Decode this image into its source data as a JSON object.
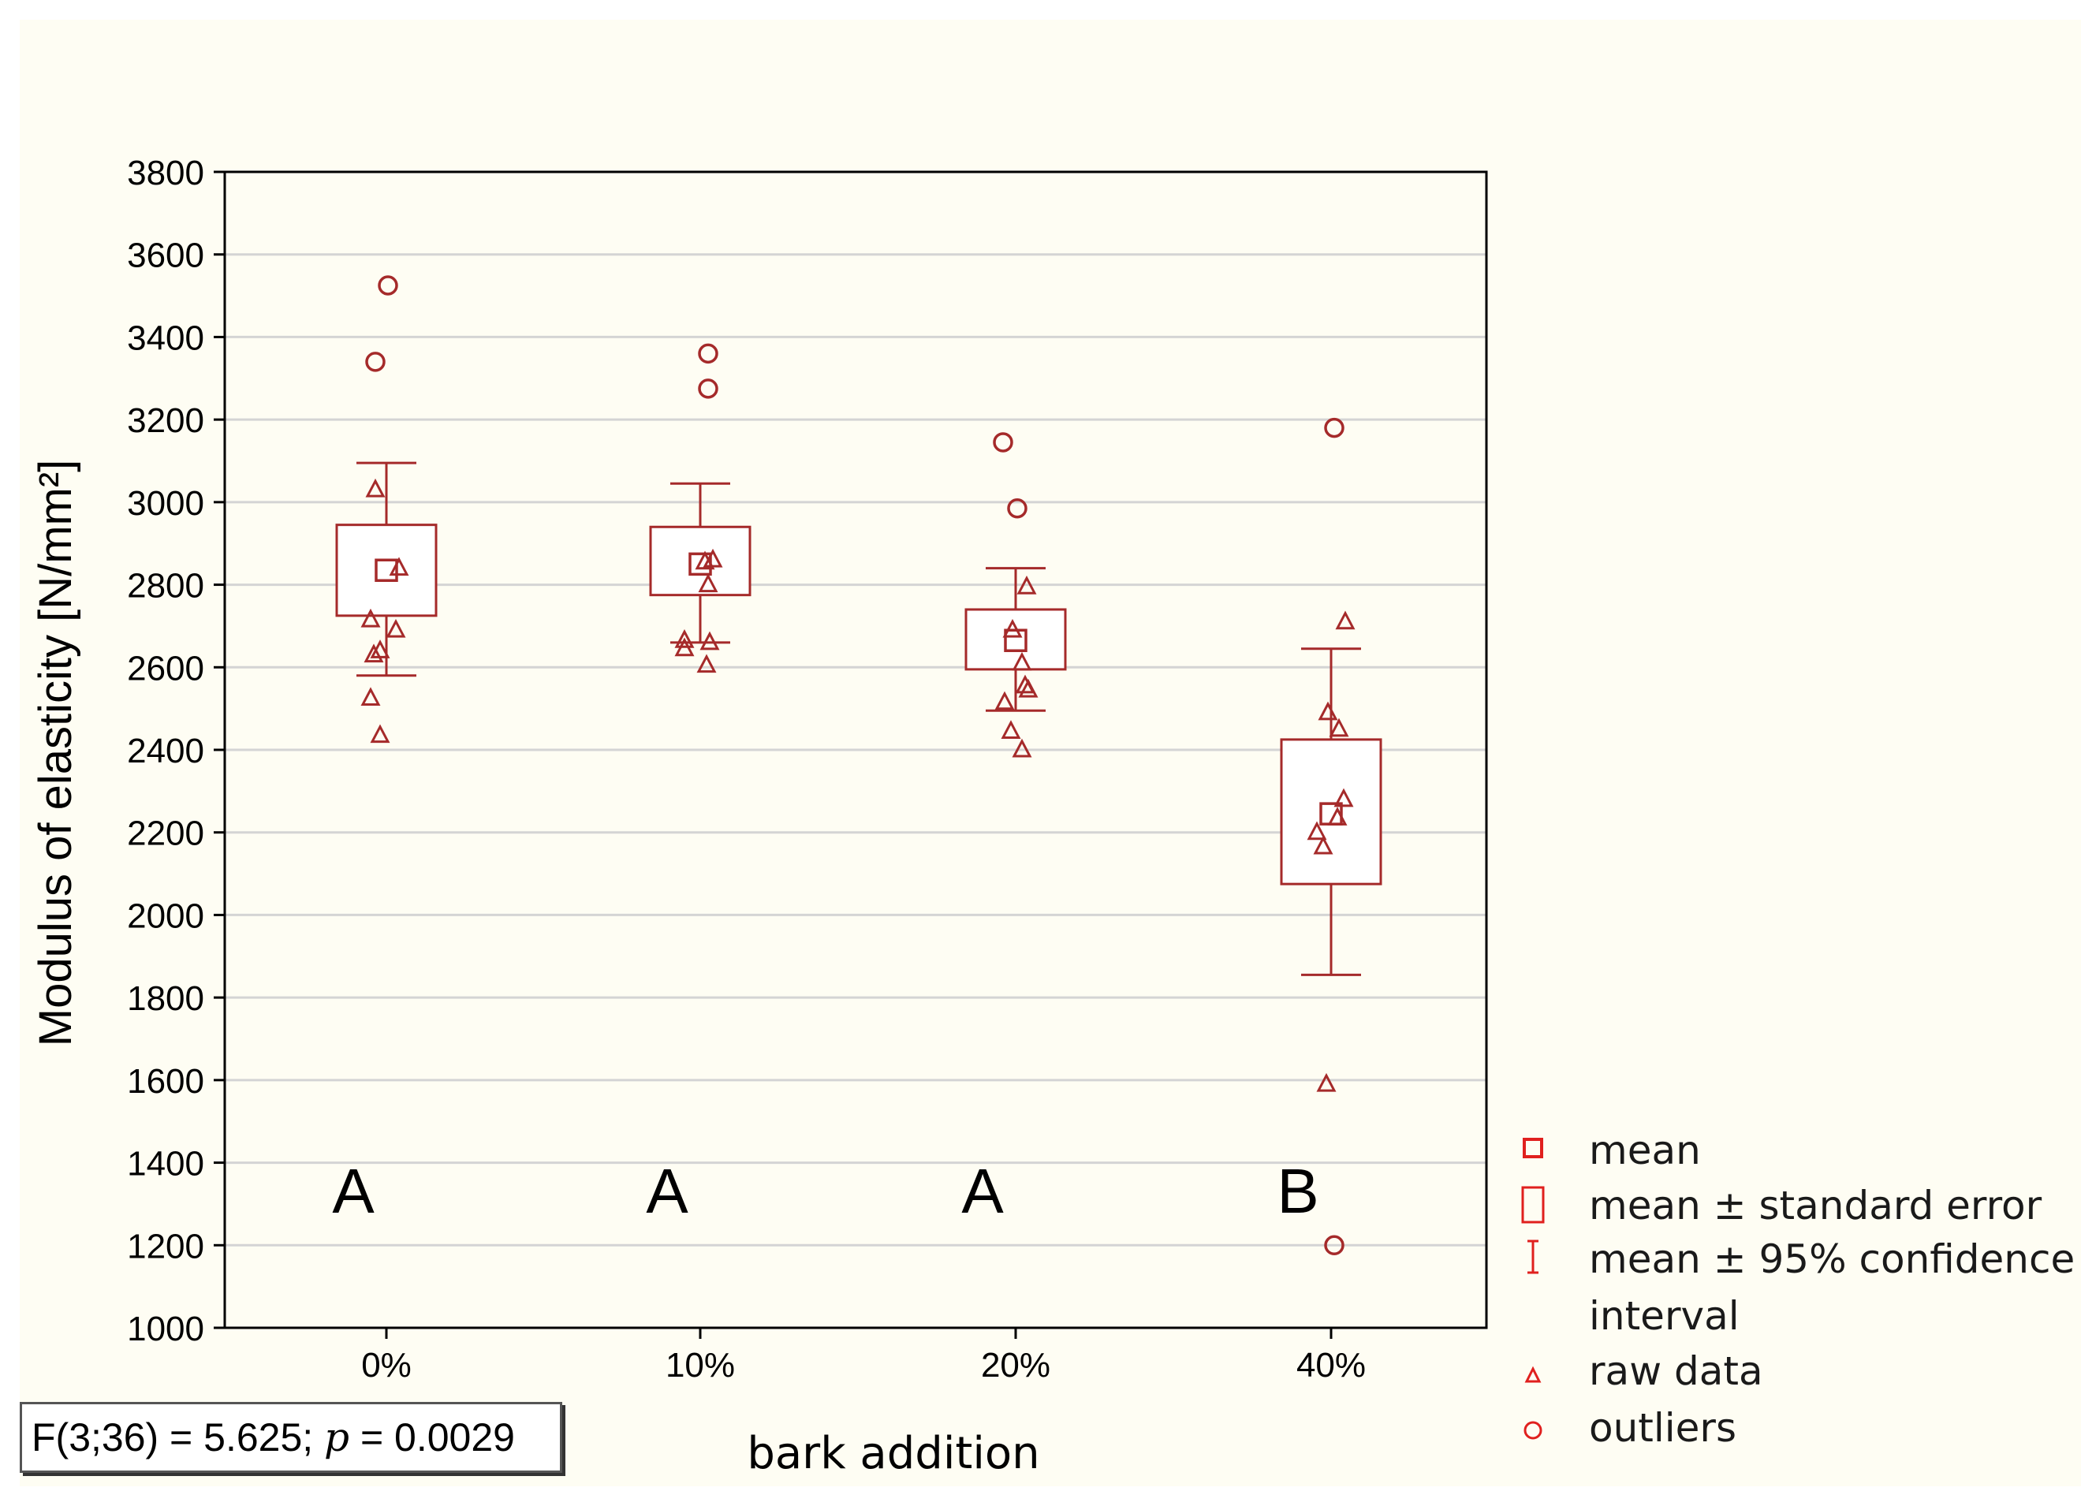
{
  "chart_data": {
    "type": "box",
    "xlabel": "bark addition",
    "ylabel": "Modulus of elasticity [N/mm²]",
    "ylim": [
      1000,
      3800
    ],
    "yticks": [
      1000,
      1200,
      1400,
      1600,
      1800,
      2000,
      2200,
      2400,
      2600,
      2800,
      3000,
      3200,
      3400,
      3600,
      3800
    ],
    "grid": "horizontal",
    "categories": [
      "0%",
      "10%",
      "20%",
      "40%"
    ],
    "groups": [
      {
        "category": "0%",
        "letter": "A",
        "mean": 2835,
        "se": [
          2725,
          2945
        ],
        "ci": [
          2580,
          3095
        ],
        "raw": [
          [
            -0.07,
            3030
          ],
          [
            0.08,
            2840
          ],
          [
            0.06,
            2690
          ],
          [
            -0.1,
            2715
          ],
          [
            -0.08,
            2630
          ],
          [
            -0.04,
            2640
          ],
          [
            -0.1,
            2525
          ],
          [
            -0.04,
            2435
          ]
        ],
        "outliers": [
          [
            0.01,
            3525
          ],
          [
            -0.07,
            3340
          ]
        ]
      },
      {
        "category": "10%",
        "letter": "A",
        "mean": 2850,
        "se": [
          2775,
          2940
        ],
        "ci": [
          2660,
          3045
        ],
        "raw": [
          [
            0.08,
            2860
          ],
          [
            0.03,
            2855
          ],
          [
            0.05,
            2800
          ],
          [
            -0.1,
            2665
          ],
          [
            -0.1,
            2645
          ],
          [
            0.06,
            2660
          ],
          [
            0.04,
            2605
          ]
        ],
        "outliers": [
          [
            0.05,
            3360
          ],
          [
            0.05,
            3275
          ]
        ]
      },
      {
        "category": "20%",
        "letter": "A",
        "mean": 2665,
        "se": [
          2595,
          2740
        ],
        "ci": [
          2495,
          2840
        ],
        "raw": [
          [
            0.07,
            2795
          ],
          [
            -0.02,
            2690
          ],
          [
            0.04,
            2610
          ],
          [
            -0.07,
            2515
          ],
          [
            0.06,
            2555
          ],
          [
            0.08,
            2545
          ],
          [
            -0.03,
            2445
          ],
          [
            0.04,
            2400
          ]
        ],
        "outliers": [
          [
            -0.08,
            3145
          ],
          [
            0.01,
            2985
          ]
        ]
      },
      {
        "category": "40%",
        "letter": "B",
        "mean": 2245,
        "se": [
          2075,
          2425
        ],
        "ci": [
          1855,
          2645
        ],
        "raw": [
          [
            0.09,
            2710
          ],
          [
            -0.02,
            2490
          ],
          [
            0.05,
            2450
          ],
          [
            0.08,
            2280
          ],
          [
            0.04,
            2235
          ],
          [
            -0.09,
            2200
          ],
          [
            -0.05,
            2165
          ],
          [
            -0.03,
            1590
          ]
        ],
        "outliers": [
          [
            0.02,
            3180
          ],
          [
            0.02,
            1200
          ]
        ]
      }
    ],
    "statistic": {
      "prefix": "F(3;36) = 5.625; ",
      "p_symbol": "p",
      "suffix": " = 0.0029"
    },
    "legend_position": "right-bottom",
    "legend": [
      {
        "symbol": "square-small",
        "text": "mean"
      },
      {
        "symbol": "rect-tall",
        "text": "mean ± standard error"
      },
      {
        "symbol": "i-bar",
        "text": "mean ± 95% confidence"
      },
      {
        "symbol": "none",
        "text": "interval"
      },
      {
        "symbol": "triangle",
        "text": "raw data"
      },
      {
        "symbol": "circle",
        "text": "outliers"
      }
    ],
    "colors": {
      "marks": "#a52a2a",
      "legend_marks": "#e0201e",
      "grid": "#d4d4d4",
      "axis": "#000000"
    }
  }
}
